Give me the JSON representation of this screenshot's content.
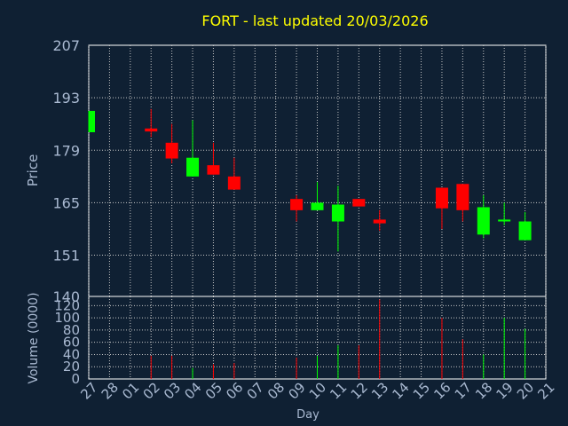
{
  "chart_data": [
    {
      "type": "candlestick",
      "title": "FORT - last updated 20/03/2026",
      "ylabel": "Price",
      "ylim": [
        140,
        207
      ],
      "yticks": [
        207,
        193,
        179,
        165,
        151,
        140
      ],
      "x": [
        "27",
        "28",
        "01",
        "02",
        "03",
        "04",
        "05",
        "06",
        "07",
        "08",
        "09",
        "10",
        "11",
        "12",
        "13",
        "14",
        "15",
        "16",
        "17",
        "18",
        "19",
        "20",
        "21"
      ],
      "candles": [
        {
          "x": "27",
          "open": 183.8,
          "close": 189.5,
          "high": 189.5,
          "low": 183.8
        },
        {
          "x": "02",
          "open": 184.8,
          "close": 184.0,
          "high": 190.0,
          "low": 182.5
        },
        {
          "x": "03",
          "open": 181.0,
          "close": 176.8,
          "high": 186.0,
          "low": 175.5
        },
        {
          "x": "04",
          "open": 172.0,
          "close": 177.0,
          "high": 187.0,
          "low": 172.0
        },
        {
          "x": "05",
          "open": 175.0,
          "close": 172.5,
          "high": 181.0,
          "low": 172.5
        },
        {
          "x": "06",
          "open": 172.0,
          "close": 168.5,
          "high": 177.0,
          "low": 168.5
        },
        {
          "x": "09",
          "open": 166.0,
          "close": 163.0,
          "high": 167.0,
          "low": 160.0
        },
        {
          "x": "10",
          "open": 163.0,
          "close": 165.0,
          "high": 170.5,
          "low": 163.0
        },
        {
          "x": "11",
          "open": 160.0,
          "close": 164.5,
          "high": 169.5,
          "low": 152.0
        },
        {
          "x": "12",
          "open": 166.0,
          "close": 164.0,
          "high": 166.0,
          "low": 164.0
        },
        {
          "x": "13",
          "open": 160.5,
          "close": 159.5,
          "high": 163.0,
          "low": 157.5
        },
        {
          "x": "16",
          "open": 169.0,
          "close": 163.5,
          "high": 169.0,
          "low": 158.0
        },
        {
          "x": "17",
          "open": 170.0,
          "close": 163.0,
          "high": 170.0,
          "low": 160.0
        },
        {
          "x": "18",
          "open": 156.5,
          "close": 163.8,
          "high": 167.0,
          "low": 155.5
        },
        {
          "x": "19",
          "open": 160.0,
          "close": 160.5,
          "high": 165.0,
          "low": 159.0
        },
        {
          "x": "20",
          "open": 155.0,
          "close": 160.0,
          "high": 162.5,
          "low": 155.0
        }
      ],
      "colors": {
        "up": "#00ff00",
        "down": "#ff0000"
      },
      "grid": true
    },
    {
      "type": "bar",
      "xlabel": "Day",
      "ylabel": "Volume (0000)",
      "ylim": [
        0,
        135
      ],
      "yticks": [
        0,
        20,
        40,
        60,
        80,
        100,
        120
      ],
      "categories": [
        "27",
        "28",
        "01",
        "02",
        "03",
        "04",
        "05",
        "06",
        "07",
        "08",
        "09",
        "10",
        "11",
        "12",
        "13",
        "14",
        "15",
        "16",
        "17",
        "18",
        "19",
        "20",
        "21"
      ],
      "values": [
        0,
        0,
        0,
        38,
        38,
        18,
        24,
        26,
        0,
        0,
        35,
        38,
        55,
        55,
        130,
        0,
        0,
        100,
        65,
        40,
        100,
        82,
        0
      ],
      "bar_colors": [
        "",
        "",
        "",
        "#ff0000",
        "#ff0000",
        "#00ff00",
        "#ff0000",
        "#ff0000",
        "",
        "",
        "#ff0000",
        "#00ff00",
        "#00ff00",
        "#ff0000",
        "#ff0000",
        "",
        "",
        "#ff0000",
        "#ff0000",
        "#00ff00",
        "#00ff00",
        "#00ff00",
        ""
      ],
      "grid": true
    }
  ]
}
